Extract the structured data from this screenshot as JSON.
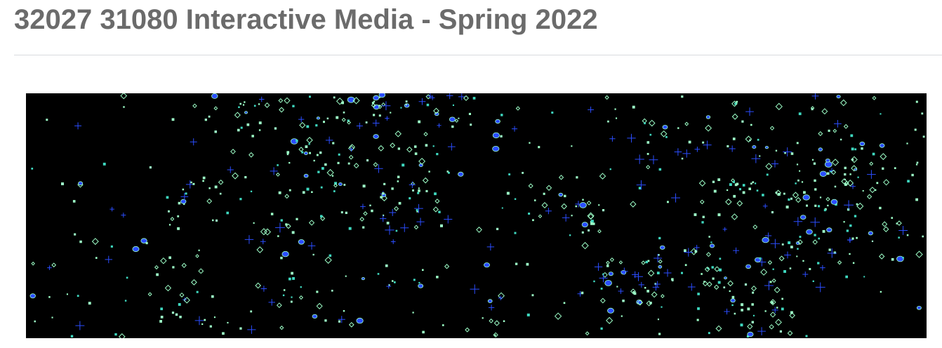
{
  "course": {
    "title": "32027 31080 Interactive Media - Spring 2022"
  },
  "banner": {
    "description_icon": "particle-pattern-image",
    "colors": {
      "background": "#000000",
      "particle_light": "#9dffc8",
      "particle_mid": "#3fd9c0",
      "particle_blue": "#2b4dff"
    }
  }
}
